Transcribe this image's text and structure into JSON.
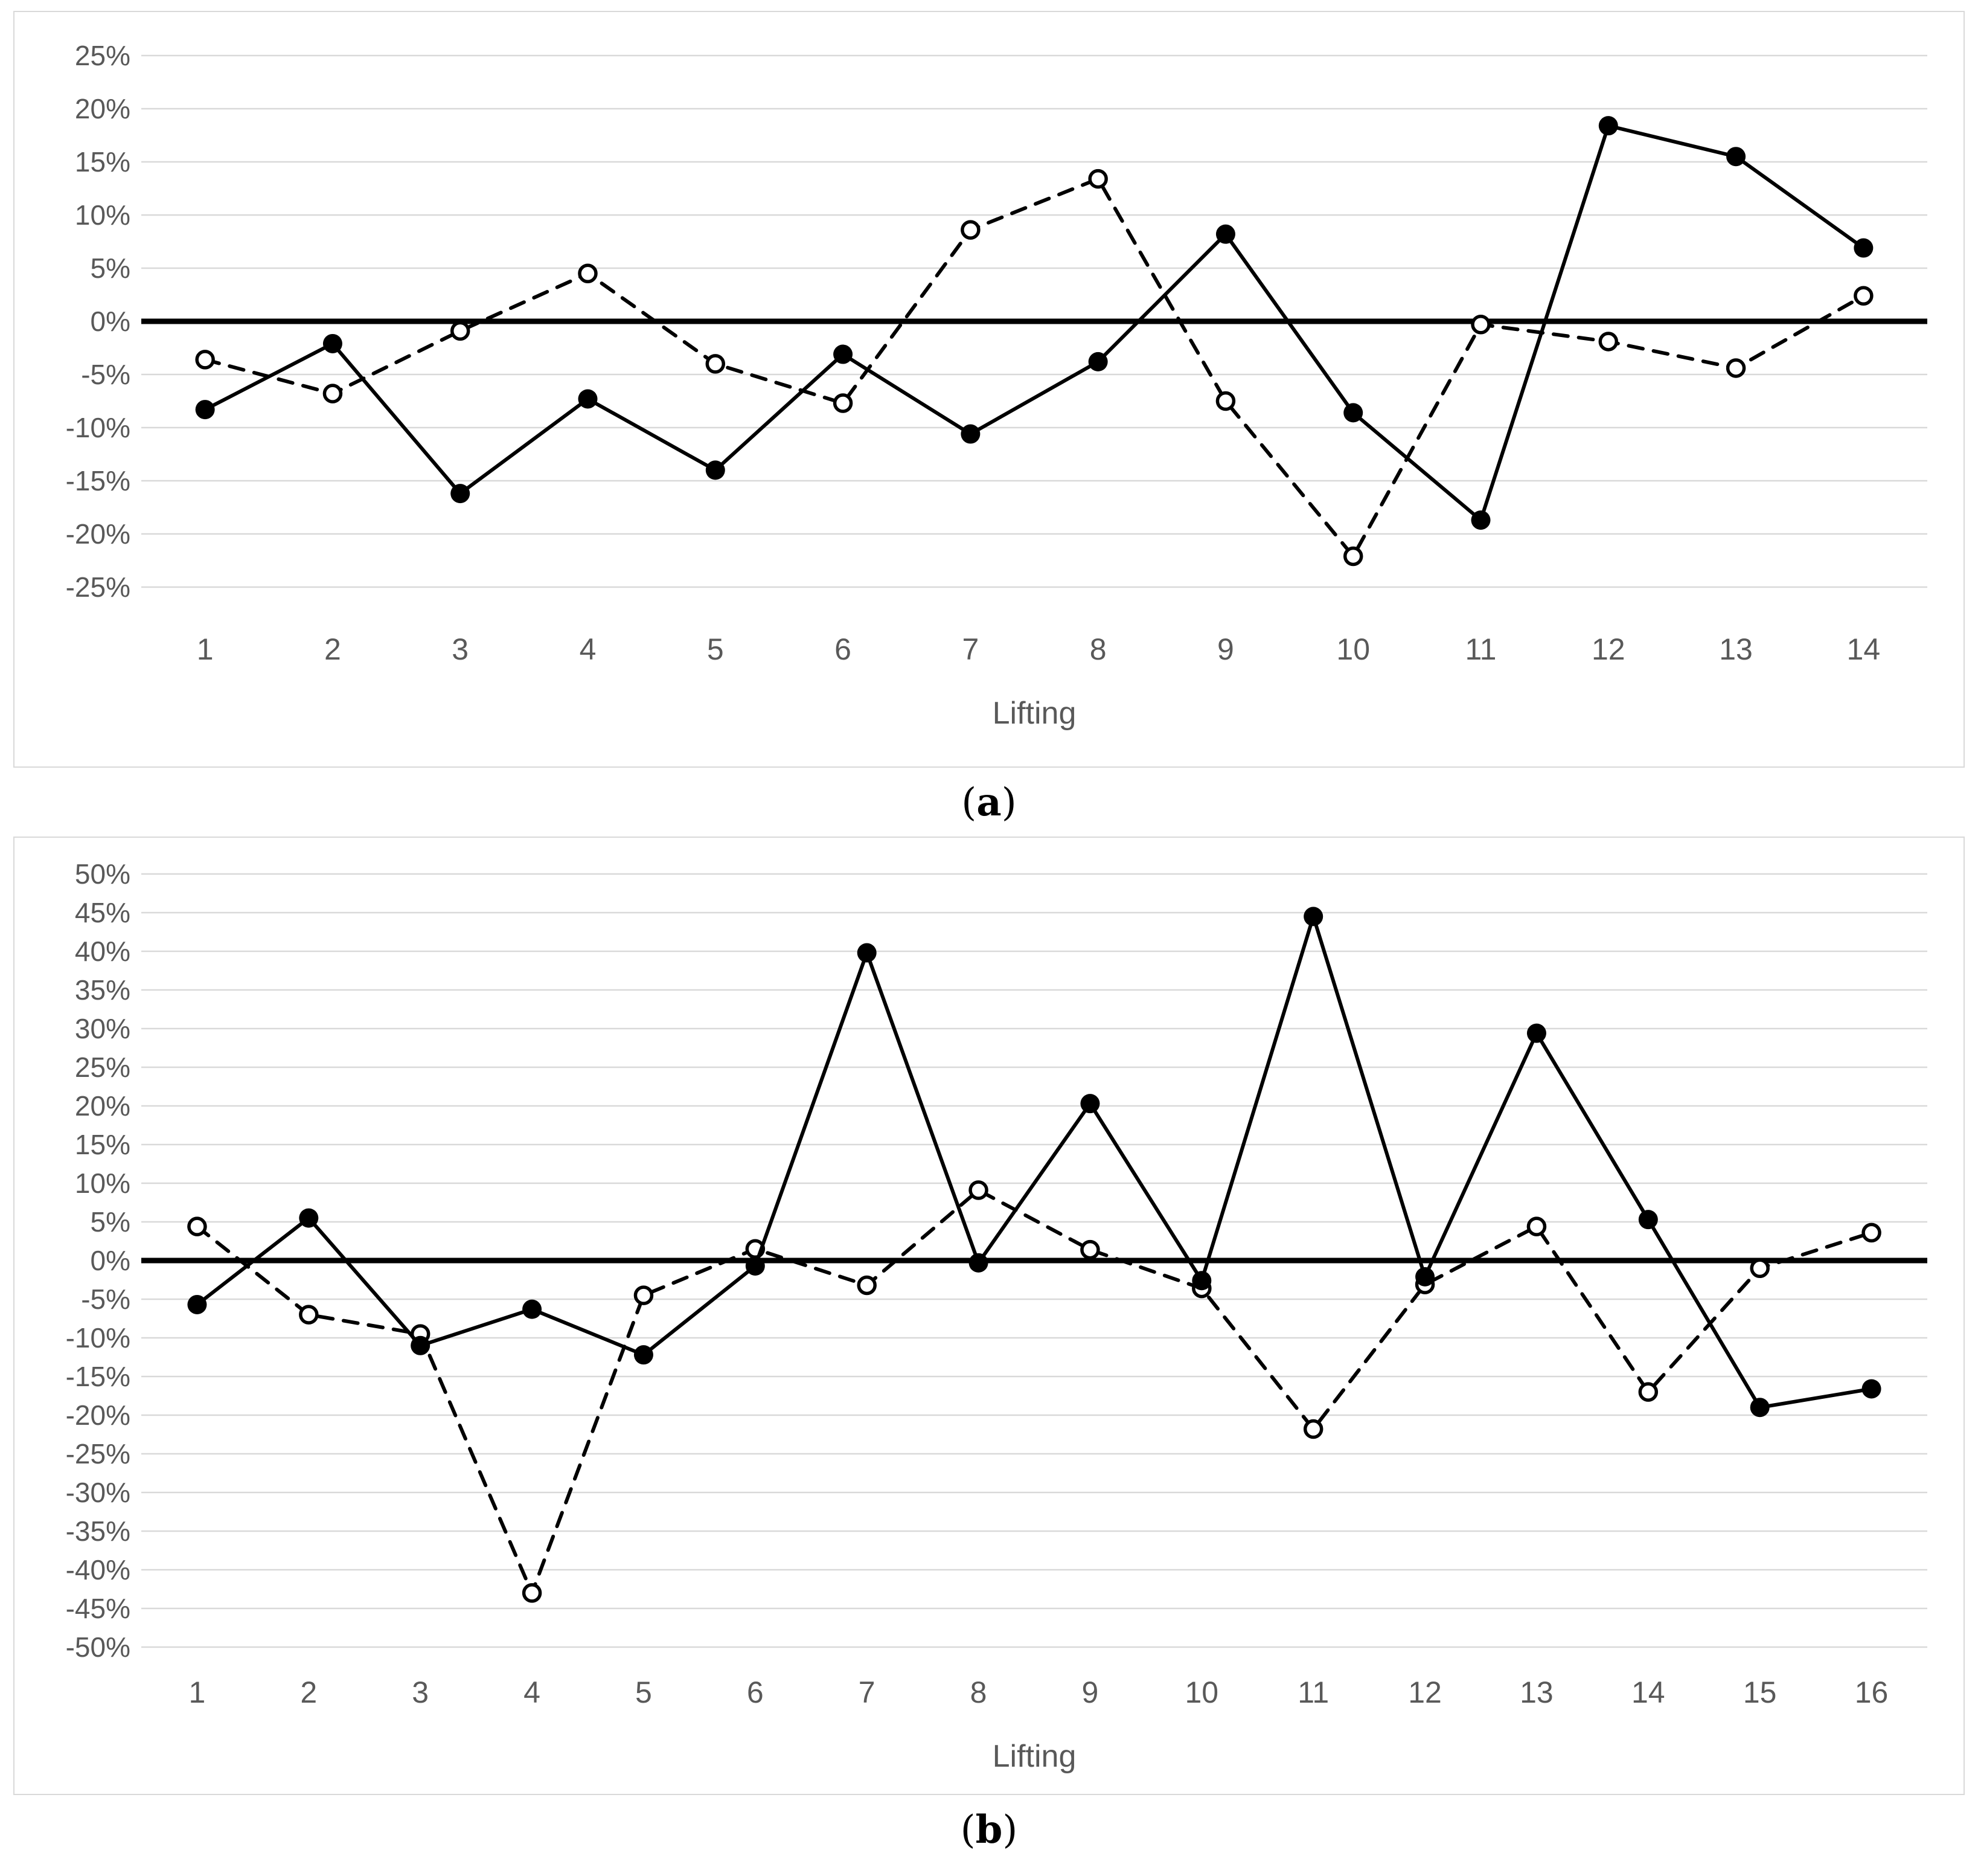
{
  "captions": {
    "a": {
      "open": "(",
      "letter": "a",
      "close": ")"
    },
    "b": {
      "open": "(",
      "letter": "b",
      "close": ")"
    }
  },
  "styles": {
    "grid_color": "#d9d9d9",
    "zero_line_color": "#000000",
    "series_color": "#000000",
    "tick_label_color": "#595959",
    "axis_label_color": "#595959",
    "panel_border_color": "#d9d9d9",
    "background": "#ffffff"
  },
  "chart_data": [
    {
      "id": "a",
      "type": "line",
      "title": "",
      "xlabel": "Lifting",
      "ylabel": "",
      "grid": true,
      "legend_position": "none",
      "ylim": [
        -25,
        25
      ],
      "ytick_step": 5,
      "ytick_labels": [
        "25%",
        "20%",
        "15%",
        "10%",
        "5%",
        "0%",
        "-5%",
        "-10%",
        "-15%",
        "-20%",
        "-25%"
      ],
      "categories": [
        "1",
        "2",
        "3",
        "4",
        "5",
        "6",
        "7",
        "8",
        "9",
        "10",
        "11",
        "12",
        "13",
        "14"
      ],
      "series": [
        {
          "name": "dashed-open-circle-series",
          "line_style": "dashed",
          "marker": "open-circle",
          "color": "#000000",
          "values": [
            -3.6,
            -6.8,
            -0.9,
            4.5,
            -4.0,
            -7.7,
            8.6,
            13.4,
            -7.5,
            -22.1,
            -0.3,
            -1.9,
            -4.4,
            2.4
          ]
        },
        {
          "name": "solid-filled-circle-series",
          "line_style": "solid",
          "marker": "filled-circle",
          "color": "#000000",
          "values": [
            -8.3,
            -2.1,
            -16.2,
            -7.3,
            -14.0,
            -3.1,
            -10.6,
            -3.8,
            8.2,
            -8.6,
            -18.7,
            18.4,
            15.5,
            6.9
          ]
        }
      ]
    },
    {
      "id": "b",
      "type": "line",
      "title": "",
      "xlabel": "Lifting",
      "ylabel": "",
      "grid": true,
      "legend_position": "none",
      "ylim": [
        -50,
        50
      ],
      "ytick_step": 5,
      "ytick_labels": [
        "50%",
        "45%",
        "40%",
        "35%",
        "30%",
        "25%",
        "20%",
        "15%",
        "10%",
        "5%",
        "0%",
        "-5%",
        "-10%",
        "-15%",
        "-20%",
        "-25%",
        "-30%",
        "-35%",
        "-40%",
        "-45%",
        "-50%"
      ],
      "categories": [
        "1",
        "2",
        "3",
        "4",
        "5",
        "6",
        "7",
        "8",
        "9",
        "10",
        "11",
        "12",
        "13",
        "14",
        "15",
        "16"
      ],
      "series": [
        {
          "name": "dashed-open-circle-series",
          "line_style": "dashed",
          "marker": "open-circle",
          "color": "#000000",
          "values": [
            4.4,
            -7.0,
            -9.5,
            -43.0,
            -4.5,
            1.5,
            -3.2,
            9.1,
            1.4,
            -3.6,
            -21.8,
            -3.1,
            4.4,
            -17.0,
            -1.0,
            3.6
          ]
        },
        {
          "name": "solid-filled-circle-series",
          "line_style": "solid",
          "marker": "filled-circle",
          "color": "#000000",
          "values": [
            -5.7,
            5.5,
            -11.0,
            -6.3,
            -12.2,
            -0.7,
            39.8,
            -0.3,
            20.3,
            -2.6,
            44.5,
            -2.1,
            29.4,
            5.3,
            -19.0,
            -16.6
          ]
        }
      ]
    }
  ]
}
